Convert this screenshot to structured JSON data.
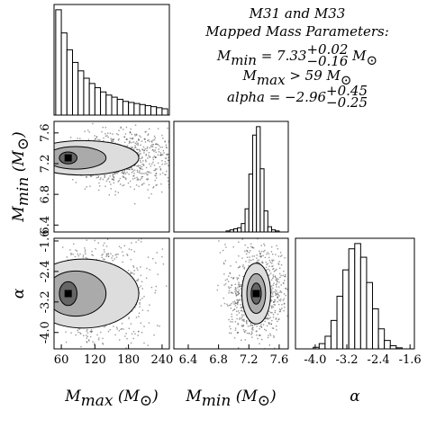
{
  "chart_data": [
    {
      "type": "histogram",
      "xlim": [
        47,
        253
      ],
      "ylim": [
        0,
        105
      ],
      "bins": [
        50,
        60,
        70,
        80,
        90,
        100,
        110,
        120,
        130,
        140,
        150,
        160,
        170,
        180,
        190,
        200,
        210,
        220,
        230,
        240,
        250
      ],
      "counts": [
        100,
        78,
        62,
        50,
        42,
        35,
        30,
        26,
        22,
        19,
        17,
        15,
        13,
        12,
        11,
        10,
        9,
        8,
        7,
        6
      ]
    },
    {
      "type": "hist2d",
      "xlim": [
        47,
        253
      ],
      "ylim": [
        6.31,
        7.75
      ],
      "yticks": [
        6.4,
        6.8,
        7.2,
        7.6
      ],
      "y_label": [
        "M",
        "min",
        " (M",
        "⊙",
        ")"
      ]
    },
    {
      "type": "histogram",
      "xlim": [
        6.21,
        7.72
      ],
      "ylim": [
        0,
        105
      ],
      "bins": [
        6.9,
        6.95,
        7.0,
        7.05,
        7.1,
        7.15,
        7.2,
        7.25,
        7.3,
        7.35,
        7.4,
        7.45,
        7.5,
        7.55,
        7.6
      ],
      "counts": [
        1,
        2,
        3,
        4,
        8,
        22,
        55,
        92,
        100,
        60,
        20,
        5,
        2,
        1
      ]
    },
    {
      "type": "hist2d",
      "xlim": [
        47,
        253
      ],
      "ylim": [
        -4.43,
        -1.53
      ],
      "xticks": [
        60,
        120,
        180,
        240
      ],
      "yticks": [
        {
          "value": -4,
          "label": "-4.0"
        },
        -3.2,
        -2.4,
        -1.6
      ],
      "x_label": [
        "M",
        "max",
        " (M",
        "⊙",
        ")"
      ],
      "y_label": [
        "α"
      ]
    },
    {
      "type": "hist2d",
      "xlim": [
        6.21,
        7.72
      ],
      "ylim": [
        -4.43,
        -1.53
      ],
      "xticks": [
        6.4,
        6.8,
        7.2,
        7.6
      ],
      "x_label": [
        "M",
        "min",
        " (M",
        "⊙",
        ")"
      ]
    },
    {
      "type": "histogram",
      "xlim": [
        -4.5,
        -1.49
      ],
      "ylim": [
        0,
        105
      ],
      "xticks": [
        {
          "value": -4,
          "label": "-4.0"
        },
        -3.2,
        -2.4,
        -1.6
      ],
      "x_label": [
        "α"
      ],
      "bins": [
        -4.2,
        -4.05,
        -3.9,
        -3.75,
        -3.6,
        -3.45,
        -3.3,
        -3.15,
        -3.0,
        -2.85,
        -2.7,
        -2.55,
        -2.4,
        -2.25,
        -2.1,
        -1.95,
        -1.8
      ],
      "counts": [
        0,
        1.5,
        5,
        12,
        27,
        50,
        75,
        95,
        100,
        87,
        63,
        38,
        19,
        8,
        3,
        1
      ]
    }
  ],
  "annotation": {
    "title": "M31 and M33",
    "subtitle": "Mapped Mass Parameters:",
    "mmin": [
      "M",
      "min",
      " = 7.33",
      "+0.02",
      "−0.16",
      " M",
      "⊙"
    ],
    "mmax": [
      "M",
      "max",
      " > 59 ",
      "M",
      "⊙"
    ],
    "alpha": [
      "alpha",
      " = −2.96",
      "+0.45",
      "−0.25"
    ]
  }
}
